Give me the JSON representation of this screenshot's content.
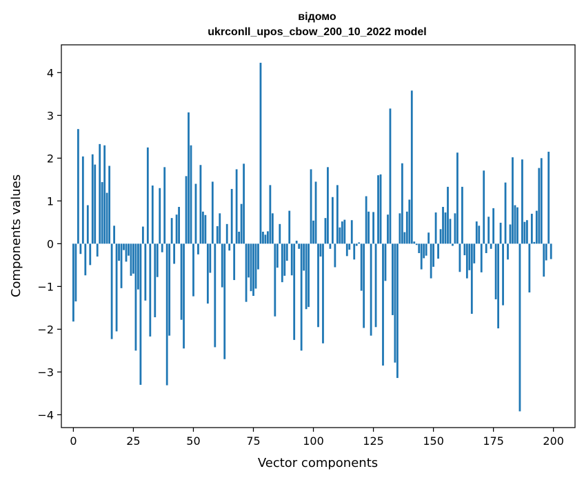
{
  "chart_data": {
    "type": "bar",
    "title": "відомо",
    "subtitle": "ukrconll_upos_cbow_200_10_2022 model",
    "xlabel": "Vector components",
    "ylabel": "Components values",
    "xlim": [
      -5,
      209
    ],
    "ylim": [
      -4.3,
      4.65
    ],
    "xticks": [
      0,
      25,
      50,
      75,
      100,
      125,
      150,
      175,
      200
    ],
    "xtick_labels": [
      "0",
      "25",
      "50",
      "75",
      "100",
      "125",
      "150",
      "175",
      "200"
    ],
    "yticks": [
      -4,
      -3,
      -2,
      -1,
      0,
      1,
      2,
      3,
      4
    ],
    "ytick_labels": [
      "−4",
      "−3",
      "−2",
      "−1",
      "0",
      "1",
      "2",
      "3",
      "4"
    ],
    "bar_color": "#1f77b4",
    "categories": [
      0,
      1,
      2,
      3,
      4,
      5,
      6,
      7,
      8,
      9,
      10,
      11,
      12,
      13,
      14,
      15,
      16,
      17,
      18,
      19,
      20,
      21,
      22,
      23,
      24,
      25,
      26,
      27,
      28,
      29,
      30,
      31,
      32,
      33,
      34,
      35,
      36,
      37,
      38,
      39,
      40,
      41,
      42,
      43,
      44,
      45,
      46,
      47,
      48,
      49,
      50,
      51,
      52,
      53,
      54,
      55,
      56,
      57,
      58,
      59,
      60,
      61,
      62,
      63,
      64,
      65,
      66,
      67,
      68,
      69,
      70,
      71,
      72,
      73,
      74,
      75,
      76,
      77,
      78,
      79,
      80,
      81,
      82,
      83,
      84,
      85,
      86,
      87,
      88,
      89,
      90,
      91,
      92,
      93,
      94,
      95,
      96,
      97,
      98,
      99,
      100,
      101,
      102,
      103,
      104,
      105,
      106,
      107,
      108,
      109,
      110,
      111,
      112,
      113,
      114,
      115,
      116,
      117,
      118,
      119,
      120,
      121,
      122,
      123,
      124,
      125,
      126,
      127,
      128,
      129,
      130,
      131,
      132,
      133,
      134,
      135,
      136,
      137,
      138,
      139,
      140,
      141,
      142,
      143,
      144,
      145,
      146,
      147,
      148,
      149,
      150,
      151,
      152,
      153,
      154,
      155,
      156,
      157,
      158,
      159,
      160,
      161,
      162,
      163,
      164,
      165,
      166,
      167,
      168,
      169,
      170,
      171,
      172,
      173,
      174,
      175,
      176,
      177,
      178,
      179,
      180,
      181,
      182,
      183,
      184,
      185,
      186,
      187,
      188,
      189,
      190,
      191,
      192,
      193,
      194,
      195,
      196,
      197,
      198,
      199
    ],
    "values": [
      -1.82,
      -1.35,
      2.68,
      -0.24,
      2.04,
      -0.74,
      0.9,
      -0.5,
      2.09,
      1.85,
      -0.3,
      2.33,
      1.44,
      2.3,
      1.19,
      1.82,
      -2.23,
      0.42,
      -2.05,
      -0.4,
      -1.04,
      -0.15,
      -0.42,
      -0.28,
      -0.75,
      -0.7,
      -2.5,
      -1.07,
      -3.3,
      0.4,
      -1.33,
      2.25,
      -2.17,
      1.36,
      -1.72,
      -0.78,
      1.3,
      -0.2,
      1.79,
      -3.31,
      -2.15,
      0.6,
      -0.47,
      0.68,
      0.86,
      -1.78,
      -2.45,
      1.58,
      3.07,
      2.3,
      -1.23,
      1.4,
      -0.25,
      1.84,
      0.75,
      0.67,
      -1.4,
      -0.68,
      1.45,
      -2.42,
      0.41,
      0.71,
      -1.02,
      -2.7,
      0.46,
      -0.16,
      1.28,
      -0.85,
      1.74,
      0.28,
      0.93,
      1.87,
      -1.36,
      -0.79,
      -1.11,
      -1.22,
      -1.05,
      -0.6,
      4.23,
      0.28,
      0.21,
      0.29,
      1.37,
      0.71,
      -1.7,
      -0.56,
      0.46,
      -0.9,
      -0.75,
      -0.4,
      0.77,
      -0.74,
      -2.25,
      0.07,
      -0.12,
      -2.5,
      -0.63,
      -1.53,
      -1.48,
      1.74,
      0.54,
      1.45,
      -1.95,
      -0.3,
      -2.33,
      0.6,
      1.79,
      -0.12,
      1.09,
      -0.55,
      1.37,
      0.38,
      0.52,
      0.56,
      -0.29,
      -0.14,
      0.55,
      -0.37,
      -0.05,
      0.03,
      -1.1,
      -1.97,
      1.11,
      0.75,
      -2.15,
      0.74,
      -1.95,
      1.6,
      1.62,
      -2.85,
      -0.87,
      0.68,
      3.16,
      -1.67,
      -2.78,
      -3.14,
      0.71,
      1.88,
      0.27,
      0.75,
      1.03,
      3.58,
      0.05,
      -0.03,
      -0.22,
      -0.6,
      -0.34,
      -0.28,
      0.26,
      -0.81,
      -0.54,
      0.73,
      -0.35,
      0.34,
      0.86,
      0.73,
      1.33,
      0.58,
      -0.05,
      0.71,
      2.13,
      -0.66,
      1.33,
      -0.27,
      -0.81,
      -0.62,
      -1.64,
      -0.46,
      0.52,
      0.42,
      -0.67,
      1.71,
      -0.22,
      0.63,
      -0.12,
      0.83,
      -1.3,
      -1.98,
      0.49,
      -1.44,
      1.43,
      -0.37,
      0.45,
      2.02,
      0.9,
      0.85,
      -3.92,
      1.97,
      0.51,
      0.55,
      -1.14,
      0.7,
      0.04,
      0.77,
      1.77,
      2.0,
      -0.77,
      -0.39,
      2.15,
      -0.36
    ]
  }
}
